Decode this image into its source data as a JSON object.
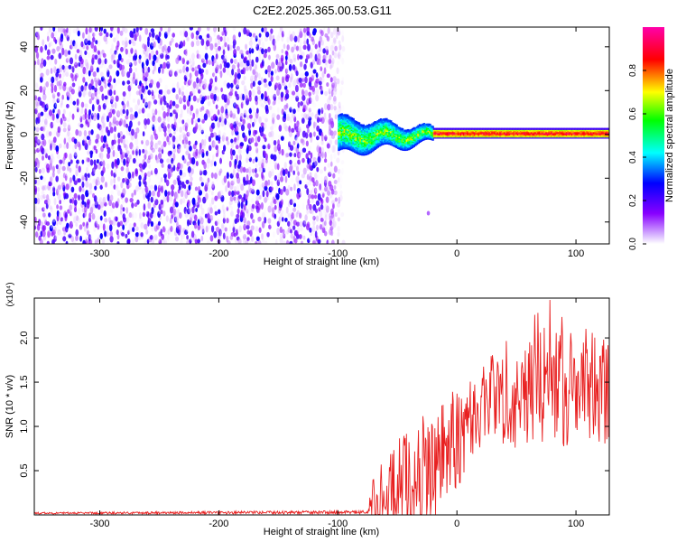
{
  "figure": {
    "title": "C2E2.2025.365.00.53.G11"
  },
  "chart_data": [
    {
      "type": "heatmap",
      "title": "C2E2.2025.365.00.53.G11",
      "xlabel": "Height of straight line (km)",
      "ylabel": "Frequency (Hz)",
      "xlim": [
        -355,
        128
      ],
      "ylim": [
        -50,
        49
      ],
      "xticks": [
        -300,
        -200,
        -100,
        0,
        100
      ],
      "yticks": [
        -40,
        -20,
        0,
        20,
        40
      ],
      "colorbar": {
        "label": "Normalized spectral amplitude",
        "range": [
          0,
          1
        ],
        "ticks": [
          0.0,
          0.2,
          0.4,
          0.6,
          0.8
        ],
        "tick_labels": [
          "0.0",
          "0.2",
          "0.4",
          "0.6",
          "0.8"
        ],
        "colormap": [
          "#ffffff",
          "#8800ff",
          "#0000ff",
          "#00ffff",
          "#00ff00",
          "#ffff00",
          "#ff0000",
          "#ff00aa"
        ]
      },
      "regions": [
        {
          "name": "noise",
          "x": [
            -355,
            -95
          ],
          "y": [
            -50,
            49
          ],
          "amplitude": [
            0.0,
            0.25
          ]
        },
        {
          "name": "transition",
          "x": [
            -100,
            -20
          ],
          "y_center": 0,
          "half_width": [
            8,
            3
          ],
          "amplitude": [
            0.3,
            0.7
          ]
        },
        {
          "name": "signal-line",
          "x": [
            -20,
            128
          ],
          "y_center": 1,
          "half_width": 2,
          "amplitude": [
            0.6,
            0.95
          ]
        }
      ],
      "isolated_points": [
        {
          "x": -24,
          "y": -36,
          "amplitude": 0.15
        }
      ]
    },
    {
      "type": "line",
      "xlabel": "Height of straight line (km)",
      "ylabel": "SNR (10 * v/v)",
      "scale_label": "(x10⁴)",
      "xlim": [
        -355,
        128
      ],
      "ylim": [
        0,
        2.45
      ],
      "xticks": [
        -300,
        -200,
        -100,
        0,
        100
      ],
      "yticks": [
        0.5,
        1.0,
        1.5,
        2.0
      ],
      "ytick_labels": [
        "0.5",
        "1.0",
        "1.5",
        "2.0"
      ],
      "color": "#e82020",
      "profile": [
        {
          "x": -355,
          "mean": 0.02,
          "spread": 0.01
        },
        {
          "x": -75,
          "mean": 0.03,
          "spread": 0.02
        },
        {
          "x": -70,
          "mean": 0.15,
          "spread": 0.3
        },
        {
          "x": -50,
          "mean": 0.3,
          "spread": 0.55
        },
        {
          "x": -30,
          "mean": 0.45,
          "spread": 0.7
        },
        {
          "x": -20,
          "mean": 0.55,
          "spread": 0.6
        },
        {
          "x": -5,
          "mean": 0.8,
          "spread": 0.6
        },
        {
          "x": 10,
          "mean": 1.05,
          "spread": 0.55
        },
        {
          "x": 30,
          "mean": 1.35,
          "spread": 0.5
        },
        {
          "x": 50,
          "mean": 1.45,
          "spread": 0.7
        },
        {
          "x": 75,
          "mean": 1.55,
          "spread": 0.8
        },
        {
          "x": 100,
          "mean": 1.45,
          "spread": 0.7
        },
        {
          "x": 128,
          "mean": 1.4,
          "spread": 0.6
        }
      ],
      "peak": {
        "x": 78,
        "y": 2.43
      }
    }
  ]
}
